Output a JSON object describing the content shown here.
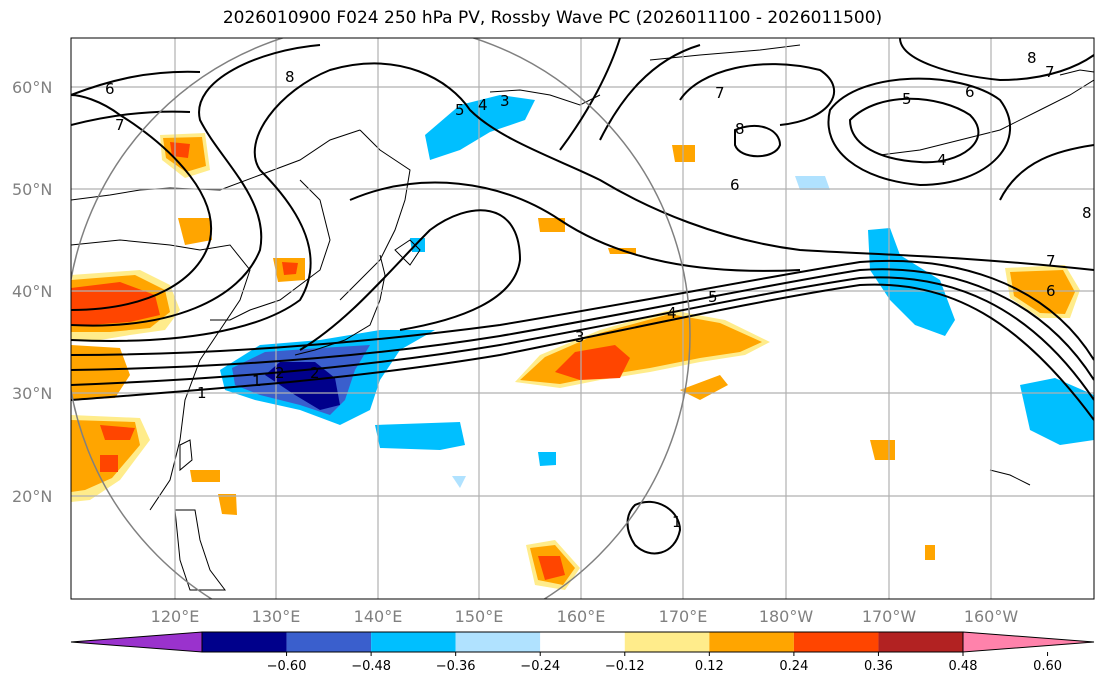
{
  "title": "2026010900 F024 250 hPa PV, Rossby Wave PC (2026011100 - 2026011500)",
  "lat_labels": [
    "60°N",
    "50°N",
    "40°N",
    "30°N",
    "20°N"
  ],
  "lon_labels": [
    "120°E",
    "130°E",
    "140°E",
    "150°E",
    "160°E",
    "170°E",
    "180°W",
    "170°W",
    "160°W"
  ],
  "colorbar": {
    "ticks": [
      "−0.60",
      "−0.48",
      "−0.36",
      "−0.24",
      "−0.12",
      "0.12",
      "0.24",
      "0.36",
      "0.48",
      "0.60"
    ],
    "colors": [
      "#9a32cd",
      "#00008b",
      "#3a5fcd",
      "#00bfff",
      "#b0e2ff",
      "#ffffff",
      "#ffec8b",
      "#ffa500",
      "#ff4500",
      "#b22222",
      "#ff82ab"
    ]
  },
  "contour_labels": [
    "6",
    "8",
    "7",
    "5",
    "4",
    "3",
    "2",
    "1",
    "6",
    "7",
    "8",
    "5",
    "4",
    "8",
    "7",
    "6",
    "5",
    "6",
    "7",
    "4",
    "3",
    "2",
    "1",
    "1",
    "8"
  ]
}
